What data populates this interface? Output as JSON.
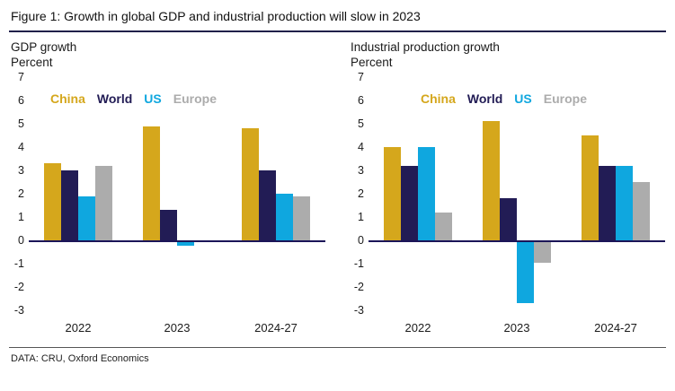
{
  "figure": {
    "title": "Figure 1: Growth in global GDP and industrial production will slow in 2023",
    "source": "DATA: CRU, Oxford Economics"
  },
  "colors": {
    "china": "#D5A71C",
    "world": "#221C55",
    "us": "#0FA7DF",
    "europe": "#ACACAC",
    "axis_line": "#1B1558"
  },
  "chart_data": [
    {
      "type": "bar",
      "title": "GDP growth",
      "ylabel": "Percent",
      "categories": [
        "2022",
        "2023",
        "2024-27"
      ],
      "series": [
        {
          "name": "China",
          "color": "#D5A71C",
          "values": [
            3.3,
            4.9,
            4.8
          ]
        },
        {
          "name": "World",
          "color": "#221C55",
          "values": [
            3.0,
            1.3,
            3.0
          ]
        },
        {
          "name": "US",
          "color": "#0FA7DF",
          "values": [
            1.9,
            -0.15,
            2.0
          ]
        },
        {
          "name": "Europe",
          "color": "#ACACAC",
          "values": [
            3.2,
            0.0,
            1.9
          ]
        }
      ],
      "ylim": [
        -3,
        7
      ],
      "yticks": [
        7,
        6,
        5,
        4,
        3,
        2,
        1,
        0,
        -1,
        -2,
        -3
      ],
      "grid": false,
      "legend_position": "top-inside"
    },
    {
      "type": "bar",
      "title": "Industrial production growth",
      "ylabel": "Percent",
      "categories": [
        "2022",
        "2023",
        "2024-27"
      ],
      "series": [
        {
          "name": "China",
          "color": "#D5A71C",
          "values": [
            4.0,
            5.1,
            4.5
          ]
        },
        {
          "name": "World",
          "color": "#221C55",
          "values": [
            3.2,
            1.8,
            3.2
          ]
        },
        {
          "name": "US",
          "color": "#0FA7DF",
          "values": [
            4.0,
            -2.6,
            3.2
          ]
        },
        {
          "name": "Europe",
          "color": "#ACACAC",
          "values": [
            1.2,
            -0.9,
            2.5
          ]
        }
      ],
      "ylim": [
        -3,
        7
      ],
      "yticks": [
        7,
        6,
        5,
        4,
        3,
        2,
        1,
        0,
        -1,
        -2,
        -3
      ],
      "grid": false,
      "legend_position": "top-inside"
    }
  ]
}
